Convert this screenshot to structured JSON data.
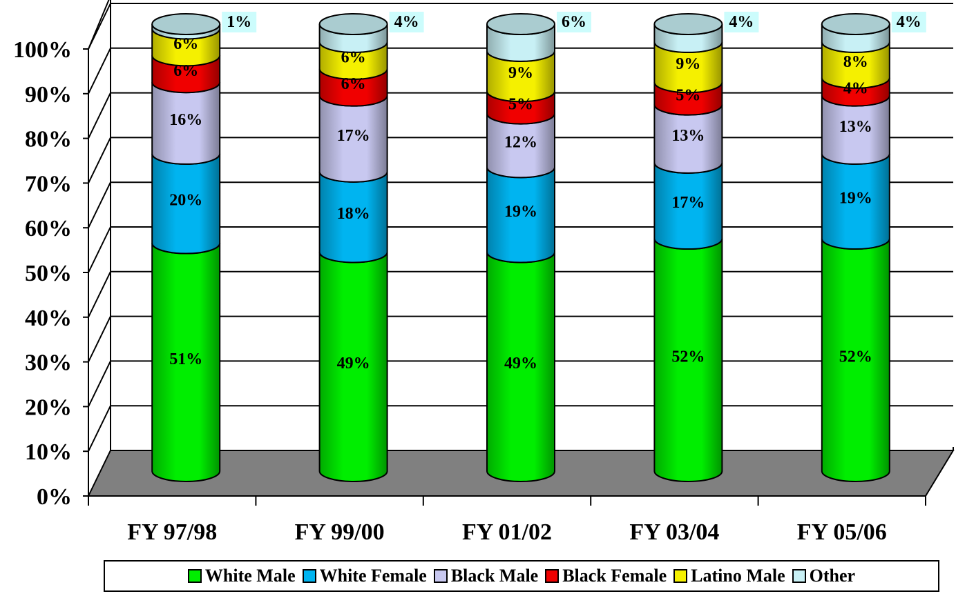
{
  "chart_data": {
    "type": "bar",
    "stacked": true,
    "three_d": true,
    "categories": [
      "FY 97/98",
      "FY 99/00",
      "FY 01/02",
      "FY 03/04",
      "FY 05/06"
    ],
    "series": [
      {
        "name": "White Male",
        "color": "#00ee00",
        "values": [
          51,
          49,
          49,
          52,
          52
        ]
      },
      {
        "name": "White Female",
        "color": "#00b4f0",
        "values": [
          20,
          18,
          19,
          17,
          19
        ]
      },
      {
        "name": "Black Male",
        "color": "#c8c8f0",
        "values": [
          16,
          17,
          12,
          13,
          13
        ]
      },
      {
        "name": "Black Female",
        "color": "#f00000",
        "values": [
          6,
          6,
          5,
          5,
          4
        ]
      },
      {
        "name": "Latino Male",
        "color": "#f5f000",
        "values": [
          6,
          6,
          9,
          9,
          8
        ]
      },
      {
        "name": "Other",
        "color": "#c8f0f5",
        "values": [
          1,
          4,
          6,
          4,
          4
        ]
      }
    ],
    "data_labels": [
      [
        "51%",
        "20%",
        "16%",
        "6%",
        "6%",
        "1%"
      ],
      [
        "49%",
        "18%",
        "17%",
        "6%",
        "6%",
        "4%"
      ],
      [
        "49%",
        "19%",
        "12%",
        "5%",
        "9%",
        "6%"
      ],
      [
        "52%",
        "17%",
        "13%",
        "5%",
        "9%",
        "4%"
      ],
      [
        "52%",
        "19%",
        "13%",
        "4%",
        "8%",
        "4%"
      ]
    ],
    "y_ticks": [
      "0%",
      "10%",
      "20%",
      "30%",
      "40%",
      "50%",
      "60%",
      "70%",
      "80%",
      "90%",
      "100%"
    ],
    "ylim": [
      0,
      100
    ],
    "grid": true,
    "floor_color": "#808080",
    "legend_position": "bottom",
    "title": "",
    "xlabel": "",
    "ylabel": ""
  }
}
